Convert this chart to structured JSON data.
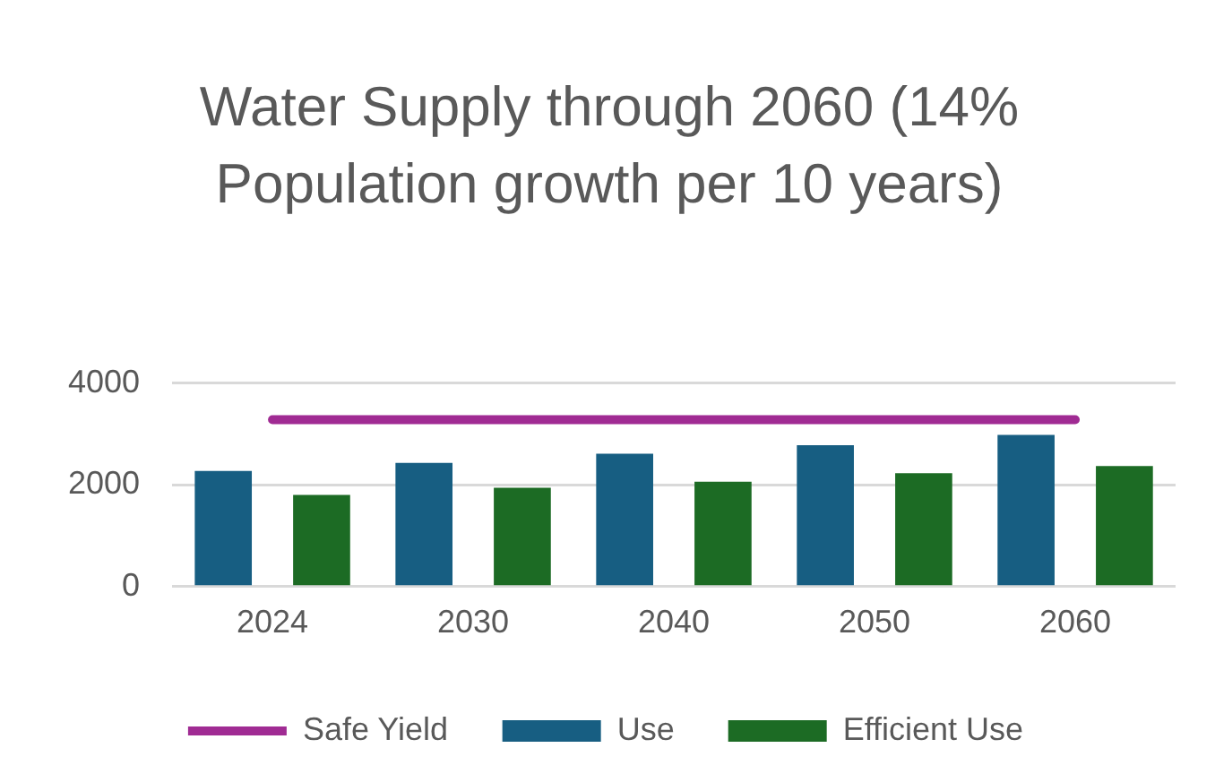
{
  "chart_data": {
    "type": "bar",
    "title": "Water Supply through 2060 (14% Population growth per 10 years)",
    "categories": [
      "2024",
      "2030",
      "2040",
      "2050",
      "2060"
    ],
    "series": [
      {
        "name": "Use",
        "color": "#175e82",
        "values": [
          2270,
          2430,
          2610,
          2780,
          2980
        ]
      },
      {
        "name": "Efficient Use",
        "color": "#1c6b24",
        "values": [
          1800,
          1940,
          2060,
          2230,
          2370
        ]
      },
      {
        "name": "Safe Yield",
        "type": "line",
        "color": "#a02b93",
        "values": [
          3280,
          3280,
          3280,
          3280,
          3280
        ]
      }
    ],
    "ylim": [
      0,
      4000
    ],
    "yticks": [
      0,
      2000,
      4000
    ],
    "grid": "y",
    "legend": "bottom",
    "marker": "none"
  }
}
